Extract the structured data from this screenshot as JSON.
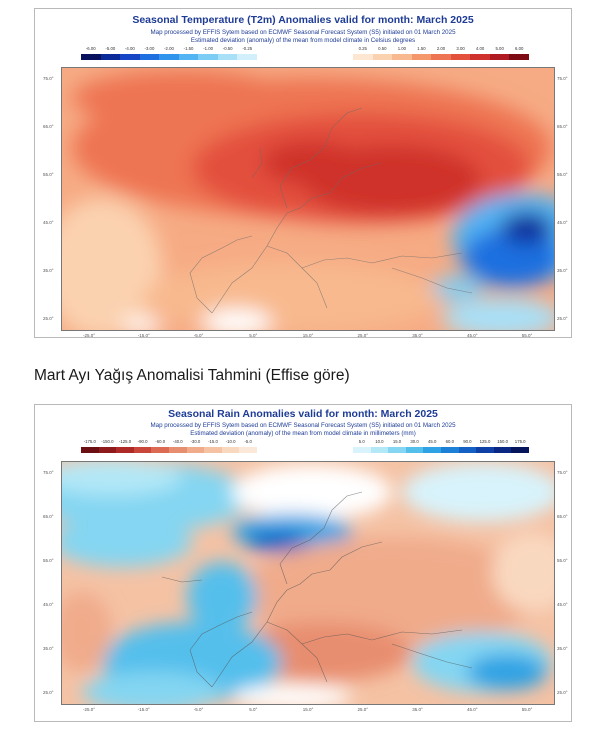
{
  "temperature_map": {
    "title": "Seasonal Temperature (T2m) Anomalies valid for month: March 2025",
    "line1": "Map processed by EFFIS Sytem based on ECMWF Seasonal Forecast System (S5) initiated on 01 March 2025",
    "line2": "Estimated deviation (anomaly) of the mean from model climate in Celsius degrees",
    "cold_ticks": [
      "-6.00",
      "-5.00",
      "-4.00",
      "-3.00",
      "-2.00",
      "-1.50",
      "-1.00",
      "-0.50",
      "-0.25"
    ],
    "warm_ticks": [
      "0.25",
      "0.50",
      "1.00",
      "1.50",
      "2.00",
      "3.00",
      "4.00",
      "5.00",
      "6.00"
    ],
    "cold_colors": [
      "#08115e",
      "#0a2a9a",
      "#1646c6",
      "#1f6fe0",
      "#2f95ec",
      "#52b4f2",
      "#7ccdf5",
      "#a8e0f8",
      "#d2f0fb"
    ],
    "warm_colors": [
      "#fde7d2",
      "#fbd2b0",
      "#f8b98e",
      "#f4986c",
      "#ee7553",
      "#e3503c",
      "#cf312c",
      "#b01b22",
      "#7d0b15"
    ],
    "lon_labels": [
      "-25.0°",
      "-15.0°",
      "-5.0°",
      "5.0°",
      "15.0°",
      "25.0°",
      "35.0°",
      "45.0°",
      "55.0°"
    ],
    "lat_labels": [
      "75.0°",
      "65.0°",
      "55.0°",
      "45.0°",
      "35.0°",
      "25.0°"
    ]
  },
  "section_heading": "Mart Ayı Yağış Anomalisi Tahmini (Effise göre)",
  "rain_map": {
    "title": "Seasonal Rain Anomalies valid for month: March 2025",
    "line1": "Map processed by EFFIS Sytem based on ECMWF Seasonal Forecast System (S5) initiated on 01 March 2025",
    "line2": "Estimated deviation (anomaly) of the mean from model climate in millimeters (mm)",
    "dry_ticks": [
      "-175.0",
      "-150.0",
      "-125.0",
      "-90.0",
      "-60.0",
      "-40.0",
      "-30.0",
      "-15.0",
      "-10.0",
      "-5.0"
    ],
    "wet_ticks": [
      "5.0",
      "10.0",
      "15.0",
      "30.0",
      "45.0",
      "60.0",
      "90.0",
      "125.0",
      "150.0",
      "175.0"
    ],
    "dry_colors": [
      "#6b0f12",
      "#8e1a1c",
      "#ad2a26",
      "#c8463a",
      "#dc6a52",
      "#e88e70",
      "#f0ab8b",
      "#f5c2a4",
      "#f9d8c0",
      "#fce8d9"
    ],
    "wet_colors": [
      "#d8f3fb",
      "#b3e8f7",
      "#84d6f2",
      "#55bfec",
      "#2ea2e4",
      "#1c80d6",
      "#1460c4",
      "#0f40a6",
      "#0a2784",
      "#06145c"
    ],
    "lon_labels": [
      "-25.0°",
      "-15.0°",
      "-5.0°",
      "5.0°",
      "15.0°",
      "25.0°",
      "35.0°",
      "45.0°",
      "55.0°"
    ],
    "lat_labels": [
      "75.0°",
      "65.0°",
      "55.0°",
      "45.0°",
      "35.0°",
      "25.0°"
    ]
  }
}
